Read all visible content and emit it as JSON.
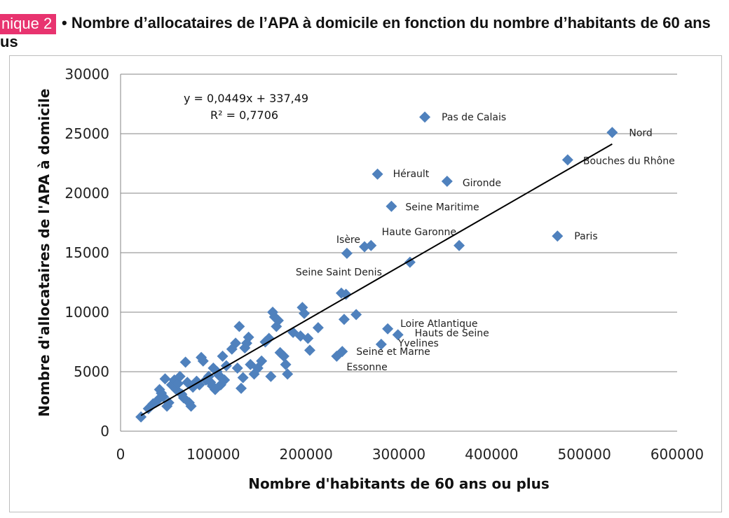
{
  "header": {
    "badge": "nique 2",
    "title_line1": "• Nombre d’allocataires de l’APA à domicile en fonction du nombre d’habitants de 60 ans",
    "title_line2": "us"
  },
  "chart_data": {
    "type": "scatter",
    "xlabel": "Nombre d'habitants de 60 ans ou plus",
    "ylabel": "Nombre d'allocataires de l'APA à domicile",
    "xlim": [
      0,
      600000
    ],
    "ylim": [
      0,
      30000
    ],
    "xticks": [
      0,
      100000,
      200000,
      300000,
      400000,
      500000,
      600000
    ],
    "yticks": [
      0,
      5000,
      10000,
      15000,
      20000,
      25000,
      30000
    ],
    "grid": "horizontal",
    "marker_color": "#4f81bd",
    "trendline": {
      "slope": 0.0449,
      "intercept": 337.49,
      "x_range": [
        22000,
        530000
      ]
    },
    "equation": "y = 0,0449x + 337,49",
    "r_squared": "R² = 0,7706",
    "labeled_points": [
      {
        "label": "Pas de Calais",
        "x": 328000,
        "y": 26400
      },
      {
        "label": "Nord",
        "x": 530000,
        "y": 25100
      },
      {
        "label": "Bouches du Rhône",
        "x": 482000,
        "y": 22800
      },
      {
        "label": "Hérault",
        "x": 277000,
        "y": 21600
      },
      {
        "label": "Gironde",
        "x": 352000,
        "y": 21000
      },
      {
        "label": "Seine Maritime",
        "x": 292000,
        "y": 18900
      },
      {
        "label": "Isère",
        "x": 244000,
        "y": 14950
      },
      {
        "label": "Haute Garonne",
        "x": 365000,
        "y": 15600
      },
      {
        "label": "Paris",
        "x": 471000,
        "y": 16400
      },
      {
        "label": "Seine Saint Denis",
        "x": 312000,
        "y": 14200
      },
      {
        "label": "Loire Atlantique",
        "x": 288000,
        "y": 8600
      },
      {
        "label": "Hauts de Seine",
        "x": 299000,
        "y": 8100
      },
      {
        "label": "Yvelines",
        "x": 281000,
        "y": 7300
      },
      {
        "label": "Seine et Marne",
        "x": 239000,
        "y": 6700
      },
      {
        "label": "Essonne",
        "x": 233000,
        "y": 6300
      }
    ],
    "points": [
      [
        22000,
        1200
      ],
      [
        30000,
        1900
      ],
      [
        35000,
        2300
      ],
      [
        40000,
        2600
      ],
      [
        42000,
        3500
      ],
      [
        44000,
        3200
      ],
      [
        46000,
        2900
      ],
      [
        48000,
        4400
      ],
      [
        50000,
        2100
      ],
      [
        52000,
        2400
      ],
      [
        55000,
        3900
      ],
      [
        58000,
        4300
      ],
      [
        60000,
        3500
      ],
      [
        62000,
        4000
      ],
      [
        64000,
        4600
      ],
      [
        66000,
        3100
      ],
      [
        68000,
        2800
      ],
      [
        70000,
        5800
      ],
      [
        72000,
        4100
      ],
      [
        74000,
        2400
      ],
      [
        76000,
        2100
      ],
      [
        78000,
        3700
      ],
      [
        80000,
        4000
      ],
      [
        82000,
        4200
      ],
      [
        85000,
        3900
      ],
      [
        87000,
        6200
      ],
      [
        89000,
        5900
      ],
      [
        92000,
        4300
      ],
      [
        95000,
        4600
      ],
      [
        97000,
        4100
      ],
      [
        99000,
        3800
      ],
      [
        100000,
        5300
      ],
      [
        102000,
        3500
      ],
      [
        104000,
        5000
      ],
      [
        106000,
        4700
      ],
      [
        108000,
        3900
      ],
      [
        110000,
        6300
      ],
      [
        112000,
        4300
      ],
      [
        114000,
        5500
      ],
      [
        120000,
        6900
      ],
      [
        124000,
        7400
      ],
      [
        126000,
        5300
      ],
      [
        128000,
        8800
      ],
      [
        130000,
        3600
      ],
      [
        132000,
        4500
      ],
      [
        134000,
        7000
      ],
      [
        136000,
        7400
      ],
      [
        138000,
        7900
      ],
      [
        140000,
        5600
      ],
      [
        144000,
        4800
      ],
      [
        148000,
        5300
      ],
      [
        152000,
        5900
      ],
      [
        156000,
        7500
      ],
      [
        160000,
        7800
      ],
      [
        162000,
        4600
      ],
      [
        164000,
        10000
      ],
      [
        166000,
        9600
      ],
      [
        168000,
        8800
      ],
      [
        170000,
        9300
      ],
      [
        172000,
        6600
      ],
      [
        176000,
        6300
      ],
      [
        178000,
        5600
      ],
      [
        180000,
        4800
      ],
      [
        186000,
        8300
      ],
      [
        194000,
        8000
      ],
      [
        196000,
        10400
      ],
      [
        198000,
        9900
      ],
      [
        202000,
        7800
      ],
      [
        204000,
        6800
      ],
      [
        213000,
        8700
      ],
      [
        238000,
        11600
      ],
      [
        241000,
        9400
      ],
      [
        243000,
        11500
      ],
      [
        254000,
        9800
      ],
      [
        263000,
        15500
      ],
      [
        270000,
        15600
      ]
    ]
  }
}
